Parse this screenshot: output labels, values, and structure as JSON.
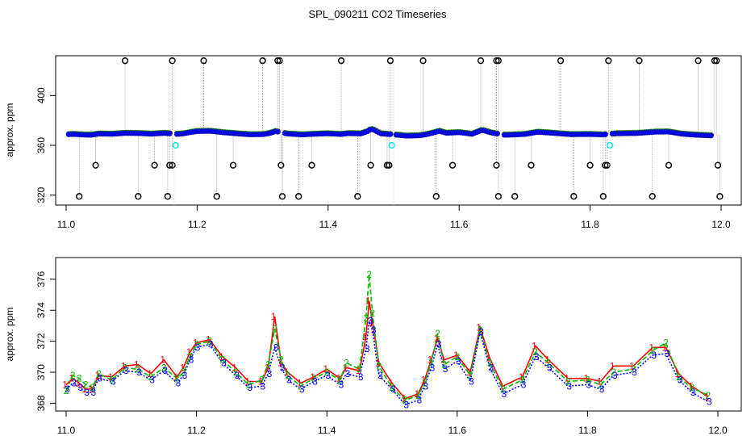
{
  "title": "SPL_090211  CO2 Timeseries",
  "colors": {
    "series1": "#ff0000",
    "series2": "#00bb00",
    "series3": "#0000ff",
    "flag": "#00e5ee",
    "outlier": "#000000",
    "bad": "#ff8c00"
  },
  "chart_data": [
    {
      "type": "scatter",
      "ylabel": "approx. ppm",
      "xlabel": "",
      "xlim": [
        11.0,
        12.0
      ],
      "ylim": [
        312,
        432
      ],
      "xticks": [
        "11.0",
        "11.2",
        "11.4",
        "11.6",
        "11.8",
        "12.0"
      ],
      "yticks": [
        "320",
        "360",
        "400"
      ],
      "grid": false,
      "baseline_level": 370,
      "outlier_high": 428,
      "outlier_mid": 344,
      "outlier_low": 319,
      "gaps_x": [
        11.165,
        11.33,
        11.5,
        11.665,
        11.83
      ],
      "flagged_points": [
        {
          "x": 11.167,
          "y": 360
        },
        {
          "x": 11.497,
          "y": 360
        },
        {
          "x": 11.83,
          "y": 360
        }
      ],
      "outliers": [
        {
          "x": 11.09,
          "y": 428
        },
        {
          "x": 11.162,
          "y": 428
        },
        {
          "x": 11.21,
          "y": 428
        },
        {
          "x": 11.3,
          "y": 428
        },
        {
          "x": 11.323,
          "y": 428
        },
        {
          "x": 11.326,
          "y": 428
        },
        {
          "x": 11.42,
          "y": 428
        },
        {
          "x": 11.495,
          "y": 428
        },
        {
          "x": 11.545,
          "y": 428
        },
        {
          "x": 11.633,
          "y": 428
        },
        {
          "x": 11.657,
          "y": 428
        },
        {
          "x": 11.66,
          "y": 428
        },
        {
          "x": 11.755,
          "y": 428
        },
        {
          "x": 11.828,
          "y": 428
        },
        {
          "x": 11.875,
          "y": 428
        },
        {
          "x": 11.965,
          "y": 428
        },
        {
          "x": 11.99,
          "y": 428
        },
        {
          "x": 11.993,
          "y": 428
        },
        {
          "x": 11.045,
          "y": 344
        },
        {
          "x": 11.135,
          "y": 344
        },
        {
          "x": 11.158,
          "y": 344
        },
        {
          "x": 11.162,
          "y": 344
        },
        {
          "x": 11.255,
          "y": 344
        },
        {
          "x": 11.328,
          "y": 344
        },
        {
          "x": 11.375,
          "y": 344
        },
        {
          "x": 11.465,
          "y": 344
        },
        {
          "x": 11.49,
          "y": 344
        },
        {
          "x": 11.493,
          "y": 344
        },
        {
          "x": 11.59,
          "y": 344
        },
        {
          "x": 11.657,
          "y": 344
        },
        {
          "x": 11.71,
          "y": 344
        },
        {
          "x": 11.8,
          "y": 344
        },
        {
          "x": 11.823,
          "y": 344
        },
        {
          "x": 11.826,
          "y": 344
        },
        {
          "x": 11.92,
          "y": 344
        },
        {
          "x": 11.995,
          "y": 344
        },
        {
          "x": 11.02,
          "y": 319
        },
        {
          "x": 11.11,
          "y": 319
        },
        {
          "x": 11.155,
          "y": 319
        },
        {
          "x": 11.23,
          "y": 319
        },
        {
          "x": 11.33,
          "y": 319
        },
        {
          "x": 11.355,
          "y": 319
        },
        {
          "x": 11.445,
          "y": 319
        },
        {
          "x": 11.565,
          "y": 319
        },
        {
          "x": 11.66,
          "y": 319
        },
        {
          "x": 11.685,
          "y": 319
        },
        {
          "x": 11.775,
          "y": 319
        },
        {
          "x": 11.82,
          "y": 319
        },
        {
          "x": 11.895,
          "y": 319
        },
        {
          "x": 11.998,
          "y": 319
        }
      ]
    },
    {
      "type": "line",
      "ylabel": "approx. ppm",
      "xlabel": "",
      "xlim": [
        11.0,
        12.0
      ],
      "ylim": [
        367.5,
        377.4
      ],
      "xticks": [
        "11.0",
        "11.2",
        "11.4",
        "11.6",
        "11.8",
        "12.0"
      ],
      "yticks": [
        "368",
        "370",
        "372",
        "374",
        "376"
      ],
      "grid": false,
      "markers": [
        "1",
        "2",
        "3"
      ],
      "x": [
        11.0,
        11.01,
        11.02,
        11.03,
        11.04,
        11.05,
        11.07,
        11.09,
        11.11,
        11.13,
        11.15,
        11.17,
        11.18,
        11.19,
        11.2,
        11.22,
        11.24,
        11.26,
        11.28,
        11.3,
        11.31,
        11.32,
        11.33,
        11.34,
        11.36,
        11.38,
        11.4,
        11.42,
        11.43,
        11.45,
        11.46,
        11.465,
        11.47,
        11.48,
        11.5,
        11.52,
        11.54,
        11.55,
        11.56,
        11.57,
        11.58,
        11.6,
        11.62,
        11.635,
        11.65,
        11.67,
        11.7,
        11.72,
        11.74,
        11.77,
        11.8,
        11.82,
        11.84,
        11.87,
        11.9,
        11.92,
        11.94,
        11.96,
        11.985
      ],
      "series": [
        {
          "name": "1",
          "values": [
            369.2,
            369.6,
            369.3,
            368.9,
            368.9,
            369.8,
            369.7,
            370.4,
            370.5,
            369.9,
            370.8,
            369.7,
            370.3,
            371.3,
            371.9,
            372.1,
            371.0,
            370.3,
            369.4,
            369.4,
            370.3,
            373.6,
            370.6,
            370.0,
            369.3,
            369.7,
            370.2,
            369.6,
            370.3,
            370.1,
            372.3,
            374.6,
            373.2,
            370.6,
            369.3,
            368.3,
            368.6,
            369.5,
            370.8,
            372.2,
            370.8,
            371.1,
            370.0,
            372.9,
            370.9,
            369.1,
            369.7,
            371.7,
            370.8,
            369.6,
            369.6,
            369.4,
            370.4,
            370.4,
            371.6,
            371.6,
            369.9,
            369.1,
            368.4
          ]
        },
        {
          "name": "2",
          "values": [
            368.8,
            369.8,
            369.6,
            369.2,
            369.0,
            369.9,
            369.5,
            370.3,
            370.2,
            369.7,
            370.3,
            369.6,
            370.0,
            371.0,
            371.8,
            372.0,
            370.8,
            370.0,
            369.2,
            369.5,
            370.5,
            372.8,
            370.8,
            369.8,
            369.1,
            369.6,
            370.0,
            369.5,
            370.6,
            370.2,
            373.5,
            376.3,
            373.8,
            370.4,
            369.0,
            368.2,
            368.5,
            369.3,
            370.6,
            372.5,
            370.5,
            371.0,
            369.8,
            372.7,
            370.6,
            368.9,
            369.5,
            371.3,
            370.6,
            369.4,
            369.5,
            369.2,
            370.0,
            370.2,
            371.4,
            371.9,
            369.7,
            369.0,
            368.5
          ]
        },
        {
          "name": "3",
          "values": [
            368.9,
            369.3,
            369.0,
            368.7,
            368.7,
            369.6,
            369.4,
            370.1,
            370.0,
            369.5,
            370.1,
            369.3,
            369.8,
            370.8,
            371.6,
            371.8,
            370.6,
            369.8,
            369.0,
            369.1,
            369.9,
            371.6,
            370.3,
            369.5,
            368.9,
            369.4,
            369.8,
            369.2,
            369.9,
            369.7,
            371.5,
            373.3,
            372.7,
            369.8,
            368.9,
            367.9,
            368.2,
            369.1,
            370.3,
            371.8,
            370.2,
            370.7,
            369.4,
            372.6,
            370.3,
            368.6,
            369.2,
            371.0,
            370.3,
            369.1,
            369.2,
            368.9,
            369.8,
            370.0,
            371.1,
            371.2,
            369.5,
            368.7,
            368.1
          ]
        }
      ]
    }
  ]
}
